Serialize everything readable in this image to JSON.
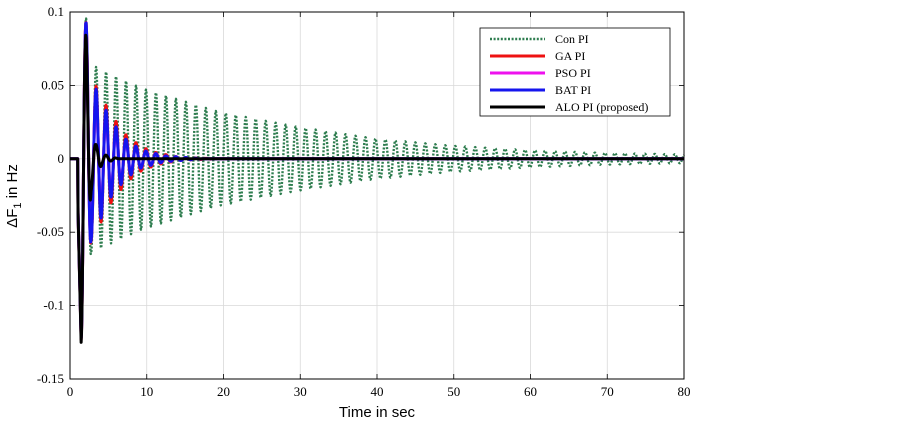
{
  "chart_data": {
    "type": "line",
    "xlabel": "Time in sec",
    "ylabel_main": "ΔF",
    "ylabel_sub": "1",
    "ylabel_tail": " in Hz",
    "xlim": [
      0,
      80
    ],
    "ylim": [
      -0.15,
      0.1
    ],
    "xticks": [
      "0",
      "10",
      "20",
      "30",
      "40",
      "50",
      "60",
      "70",
      "80"
    ],
    "yticks": [
      "0.1",
      "0.05",
      "0",
      "-0.05",
      "-0.1",
      "-0.15"
    ],
    "xtick_values": [
      0,
      10,
      20,
      30,
      40,
      50,
      60,
      70,
      80
    ],
    "ytick_values": [
      0.1,
      0.05,
      0,
      -0.05,
      -0.1,
      -0.15
    ],
    "grid": true,
    "legend_position": "top-right",
    "series": [
      {
        "name": "Con PI",
        "color": "#2e7d4f",
        "style": "dotted",
        "step_time": 1,
        "initial_dip": -0.125,
        "first_peak": 0.07,
        "envelope_points": [
          [
            2,
            0.068
          ],
          [
            5,
            0.06
          ],
          [
            10,
            0.048
          ],
          [
            20,
            0.032
          ],
          [
            30,
            0.022
          ],
          [
            40,
            0.014
          ],
          [
            50,
            0.009
          ],
          [
            60,
            0.006
          ],
          [
            70,
            0.004
          ],
          [
            80,
            0.003
          ]
        ],
        "oscillation_period": 1.3
      },
      {
        "name": "GA PI",
        "color": "#ee1111",
        "style": "solid",
        "step_time": 1,
        "initial_dip": -0.123,
        "first_peak": 0.07,
        "envelope_points": [
          [
            2,
            0.07
          ],
          [
            4,
            0.05
          ],
          [
            6,
            0.03
          ],
          [
            8,
            0.016
          ],
          [
            10,
            0.008
          ],
          [
            12,
            0.004
          ],
          [
            15,
            0.001
          ],
          [
            20,
            0.0
          ]
        ],
        "oscillation_period": 1.3
      },
      {
        "name": "PSO PI",
        "color": "#ee11ee",
        "style": "solid",
        "step_time": 1,
        "initial_dip": -0.122,
        "first_peak": 0.071,
        "envelope_points": [
          [
            2,
            0.071
          ],
          [
            4,
            0.045
          ],
          [
            6,
            0.024
          ],
          [
            8,
            0.012
          ],
          [
            10,
            0.006
          ],
          [
            13,
            0.002
          ],
          [
            18,
            0.0
          ]
        ],
        "oscillation_period": 1.3
      },
      {
        "name": "BAT PI",
        "color": "#1515ee",
        "style": "solid",
        "step_time": 1,
        "initial_dip": -0.122,
        "first_peak": 0.072,
        "envelope_points": [
          [
            2,
            0.072
          ],
          [
            4,
            0.048
          ],
          [
            6,
            0.026
          ],
          [
            8,
            0.013
          ],
          [
            10,
            0.006
          ],
          [
            13,
            0.002
          ],
          [
            18,
            0.0
          ]
        ],
        "oscillation_period": 1.3
      },
      {
        "name": "ALO PI (proposed)",
        "color": "#000000",
        "style": "solid",
        "step_time": 1,
        "initial_dip": -0.125,
        "first_peak": 0.07,
        "envelope_points": [
          [
            2,
            0.07
          ],
          [
            3,
            0.03
          ],
          [
            4,
            0.01
          ],
          [
            5,
            0.003
          ],
          [
            7,
            0.0
          ]
        ],
        "oscillation_period": 1.3
      }
    ]
  }
}
